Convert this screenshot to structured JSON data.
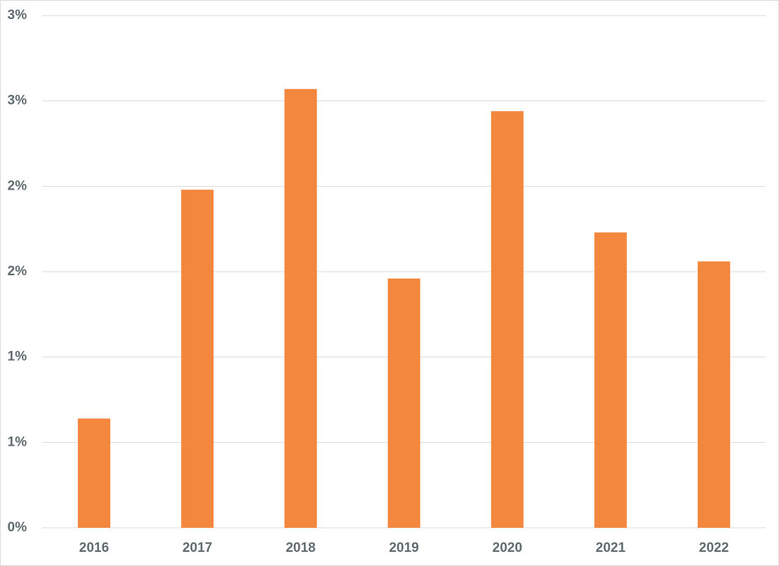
{
  "chart_data": {
    "type": "bar",
    "categories": [
      "2016",
      "2017",
      "2018",
      "2019",
      "2020",
      "2021",
      "2022"
    ],
    "values": [
      0.64,
      1.98,
      2.57,
      1.46,
      2.44,
      1.73,
      1.56
    ],
    "color": "#f4873e",
    "ylim": [
      0,
      3
    ],
    "yticks": [
      {
        "value": 0,
        "label": "0%"
      },
      {
        "value": 0.5,
        "label": "1%"
      },
      {
        "value": 1,
        "label": "1%"
      },
      {
        "value": 1.5,
        "label": "2%"
      },
      {
        "value": 2,
        "label": "2%"
      },
      {
        "value": 2.5,
        "label": "3%"
      },
      {
        "value": 3,
        "label": "3%"
      }
    ],
    "grid": true
  }
}
